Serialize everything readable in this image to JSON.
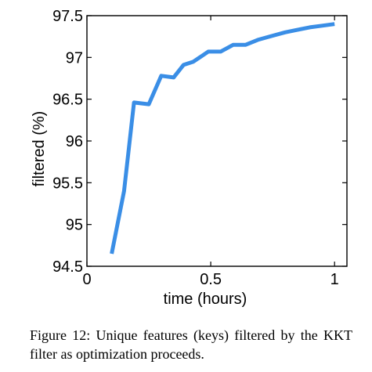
{
  "chart_data": {
    "type": "line",
    "title": "",
    "xlabel": "time (hours)",
    "ylabel": "filtered (%)",
    "xlim": [
      0,
      1.05
    ],
    "ylim": [
      94.5,
      97.5
    ],
    "xticks": [
      {
        "value": 0,
        "label": "0"
      },
      {
        "value": 0.5,
        "label": "0.5"
      },
      {
        "value": 1,
        "label": "1"
      }
    ],
    "yticks": [
      {
        "value": 94.5,
        "label": "94.5"
      },
      {
        "value": 95,
        "label": "95"
      },
      {
        "value": 95.5,
        "label": "95.5"
      },
      {
        "value": 96,
        "label": "96"
      },
      {
        "value": 96.5,
        "label": "96.5"
      },
      {
        "value": 97,
        "label": "97"
      },
      {
        "value": 97.5,
        "label": "97.5"
      }
    ],
    "grid": false,
    "legend": "none",
    "series": [
      {
        "color": "#3a8ee6",
        "x": [
          0.1,
          0.15,
          0.19,
          0.25,
          0.3,
          0.35,
          0.39,
          0.43,
          0.49,
          0.54,
          0.59,
          0.64,
          0.69,
          0.75,
          0.8,
          0.85,
          0.9,
          0.95,
          1.0
        ],
        "y": [
          94.65,
          95.4,
          96.46,
          96.44,
          96.78,
          96.76,
          96.91,
          96.95,
          97.07,
          97.07,
          97.15,
          97.15,
          97.21,
          97.26,
          97.3,
          97.33,
          97.36,
          97.38,
          97.4
        ]
      }
    ]
  },
  "caption": "Figure 12:  Unique features (keys) filtered by the KKT filter as optimization proceeds."
}
